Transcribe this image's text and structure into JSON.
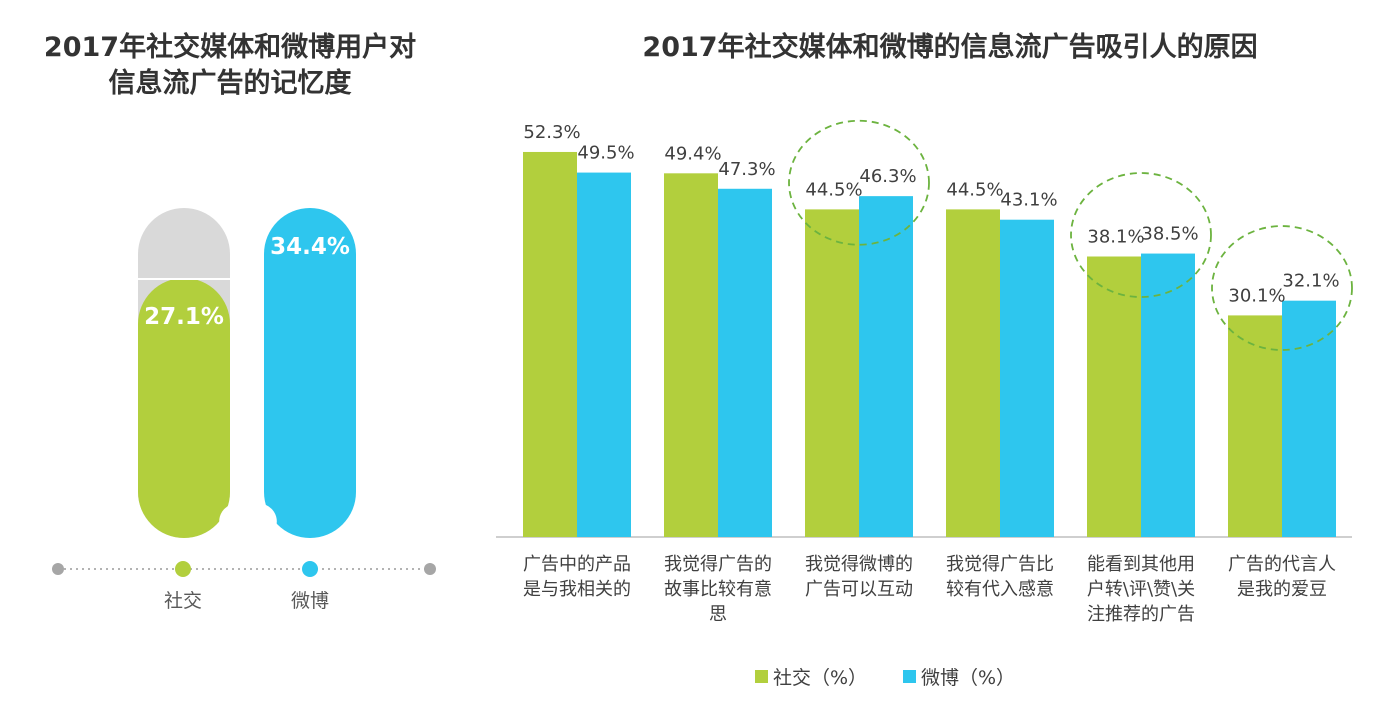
{
  "left_chart": {
    "title_line1": "2017年社交媒体和微博用户对",
    "title_line2": "信息流广告的记忆度",
    "bars": [
      {
        "name": "社交",
        "value": 27.1,
        "label": "27.1%",
        "color": "#b2cf3d"
      },
      {
        "name": "微博",
        "value": 34.4,
        "label": "34.4%",
        "color": "#2ec6ee"
      }
    ],
    "track_color": "#d9d9d9"
  },
  "chart_data": {
    "type": "bar",
    "title": "2017年社交媒体和微博的信息流广告吸引人的原因",
    "categories": [
      [
        "广告中的产品",
        "是与我相关的"
      ],
      [
        "我觉得广告的",
        "故事比较有意",
        "思"
      ],
      [
        "我觉得微博的",
        "广告可以互动"
      ],
      [
        "我觉得广告比",
        "较有代入感意"
      ],
      [
        "能看到其他用",
        "户转\\评\\赞\\关",
        "注推荐的广告"
      ],
      [
        "广告的代言人",
        "是我的爱豆"
      ]
    ],
    "series": [
      {
        "name": "社交（%）",
        "color": "#b2cf3d",
        "values": [
          52.3,
          49.4,
          44.5,
          44.5,
          38.1,
          30.1
        ],
        "labels": [
          "52.3%",
          "49.4%",
          "44.5%",
          "44.5%",
          "38.1%",
          "30.1%"
        ]
      },
      {
        "name": "微博（%）",
        "color": "#2ec6ee",
        "values": [
          49.5,
          47.3,
          46.3,
          43.1,
          38.5,
          32.1
        ],
        "labels": [
          "49.5%",
          "47.3%",
          "46.3%",
          "43.1%",
          "38.5%",
          "32.1%"
        ]
      }
    ],
    "ylim": [
      0,
      58
    ],
    "highlighted_categories": [
      2,
      4,
      5
    ],
    "highlight_color": "#6cb33f",
    "legend_position": "bottom"
  }
}
